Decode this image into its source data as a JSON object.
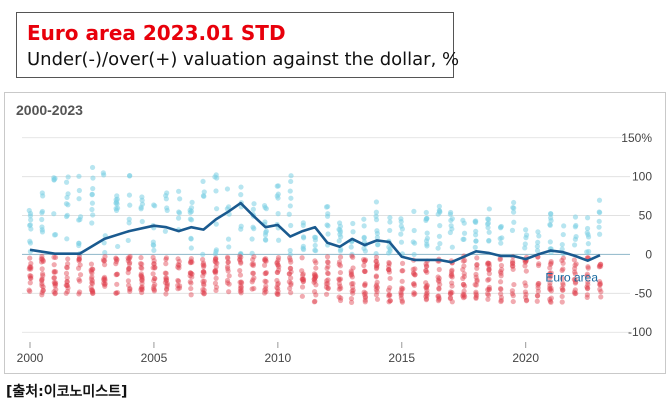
{
  "title": "Euro area 2023.01 STD",
  "subtitle": "Under(-)/over(+) valuation against the dollar, %",
  "period": "2000-2023",
  "source": "[출처:이코노미스트]",
  "colors": {
    "line": "#1a5a8f",
    "over": "#7ccfe3",
    "under": "#e0424f",
    "grid": "#dddddd",
    "zero": "#9bbfcf",
    "label": "#1a6aa0"
  },
  "chart_data": {
    "type": "line",
    "x_ticks": [
      2000,
      2005,
      2010,
      2015,
      2020
    ],
    "y_ticks": [
      150,
      100,
      50,
      0,
      -50,
      -100
    ],
    "y_tick_labels": [
      "150%",
      "100",
      "50",
      "0",
      "-50",
      "-100"
    ],
    "xlim": [
      2000,
      2023.2
    ],
    "ylim": [
      -110,
      160
    ],
    "series": [
      {
        "name": "Euro area",
        "x": [
          2000.0,
          2001.0,
          2002.0,
          2003.0,
          2004.0,
          2005.0,
          2005.5,
          2006.0,
          2006.5,
          2007.0,
          2007.5,
          2008.0,
          2008.5,
          2009.0,
          2009.5,
          2010.0,
          2010.5,
          2011.0,
          2011.5,
          2012.0,
          2012.5,
          2013.0,
          2013.5,
          2014.0,
          2014.5,
          2015.0,
          2015.5,
          2016.0,
          2016.5,
          2017.0,
          2017.5,
          2018.0,
          2018.5,
          2019.0,
          2019.5,
          2020.0,
          2020.5,
          2021.0,
          2021.5,
          2022.0,
          2022.5,
          2023.0
        ],
        "y": [
          6,
          1,
          1,
          20,
          30,
          37,
          35,
          30,
          35,
          32,
          45,
          55,
          66,
          50,
          35,
          38,
          23,
          30,
          35,
          15,
          10,
          20,
          12,
          18,
          16,
          -3,
          -7,
          -7,
          -7,
          -10,
          -3,
          4,
          2,
          -2,
          -2,
          -6,
          0,
          5,
          3,
          -2,
          -8,
          -1
        ]
      }
    ],
    "annotation": "Euro area"
  }
}
